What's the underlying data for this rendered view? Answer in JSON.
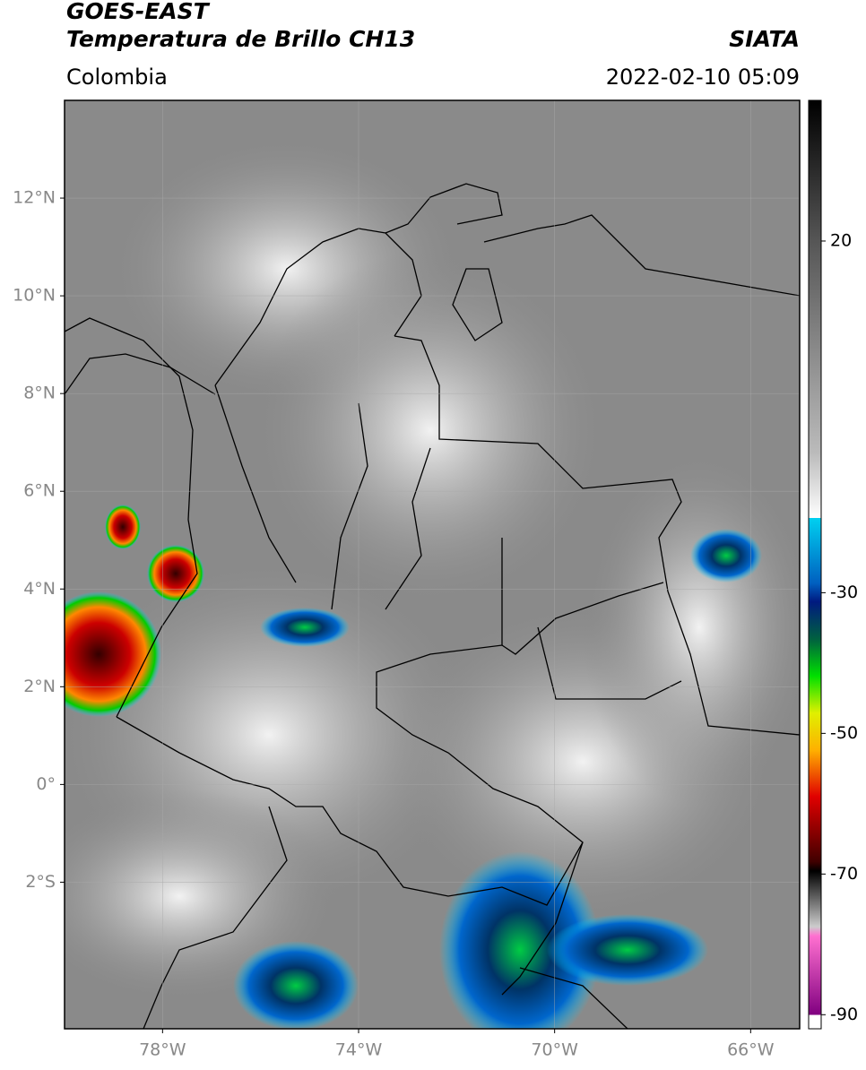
{
  "header": {
    "satellite": "GOES-EAST",
    "product": "Temperatura de Brillo CH13",
    "source": "SIATA",
    "region": "Colombia",
    "datetime": "2022-02-10 05:09"
  },
  "map": {
    "xlim": [
      -80,
      -65
    ],
    "ylim": [
      -5,
      14
    ],
    "xticks": [
      {
        "value": -78,
        "label": "78°W"
      },
      {
        "value": -74,
        "label": "74°W"
      },
      {
        "value": -70,
        "label": "70°W"
      },
      {
        "value": -66,
        "label": "66°W"
      }
    ],
    "yticks": [
      {
        "value": 12,
        "label": "12°N"
      },
      {
        "value": 10,
        "label": "10°N"
      },
      {
        "value": 8,
        "label": "8°N"
      },
      {
        "value": 6,
        "label": "6°N"
      },
      {
        "value": 4,
        "label": "4°N"
      },
      {
        "value": 2,
        "label": "2°N"
      },
      {
        "value": 0,
        "label": "0°"
      },
      {
        "value": -2,
        "label": "2°S"
      }
    ],
    "grid": true
  },
  "colorbar": {
    "lim": [
      -92,
      40
    ],
    "ticks": [
      20,
      -30,
      -50,
      -70,
      -90
    ]
  }
}
